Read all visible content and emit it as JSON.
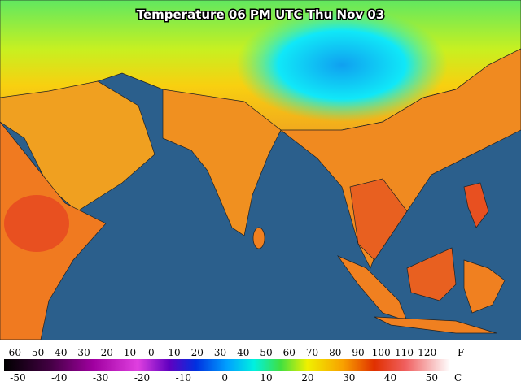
{
  "title": "Temperature 06 PM UTC Thu Nov 03",
  "legend": {
    "f_unit": "F",
    "c_unit": "C",
    "f_range": [
      -64,
      130
    ],
    "f_ticks": [
      -60,
      -50,
      -40,
      -30,
      -20,
      -10,
      0,
      10,
      20,
      30,
      40,
      50,
      60,
      70,
      80,
      90,
      100,
      110,
      120
    ],
    "c_ticks": [
      -50,
      -40,
      -30,
      -20,
      -10,
      0,
      10,
      20,
      30,
      40,
      50
    ]
  }
}
